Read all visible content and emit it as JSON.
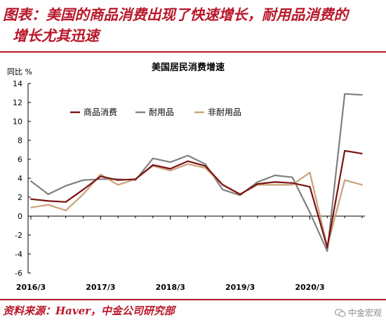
{
  "figure": {
    "title_line1": "图表：美国的商品消费出现了快速增长，耐用品消费的",
    "title_line2": "增长尤其迅速",
    "source": "资料来源：Haver，中金公司研究部",
    "watermark": "中金宏观"
  },
  "colors": {
    "accent": "#b8172a",
    "goods": "#7a1212",
    "durable": "#808080",
    "nondurable": "#c9a27a"
  },
  "chart_data": {
    "type": "line",
    "title": "美国居民消费增速",
    "ylabel": "同比 %",
    "ylim": [
      -6,
      14
    ],
    "yticks": [
      -6,
      -4,
      -2,
      0,
      2,
      4,
      6,
      8,
      10,
      12,
      14
    ],
    "xtick_labels": [
      "2016/3",
      "2017/3",
      "2018/3",
      "2019/3",
      "2020/3"
    ],
    "x": [
      "2016/3",
      "2016/6",
      "2016/9",
      "2016/12",
      "2017/3",
      "2017/6",
      "2017/9",
      "2017/12",
      "2018/3",
      "2018/6",
      "2018/9",
      "2018/12",
      "2019/3",
      "2019/6",
      "2019/9",
      "2019/12",
      "2020/3",
      "2020/6",
      "2020/9",
      "2020/12"
    ],
    "legend_position": "upper-left",
    "grid": false,
    "series": [
      {
        "name": "商品消费",
        "color_key": "goods",
        "values": [
          1.8,
          1.6,
          1.5,
          2.8,
          4.2,
          3.8,
          3.9,
          5.4,
          5.0,
          5.8,
          5.3,
          3.3,
          2.3,
          3.4,
          3.6,
          3.5,
          3.1,
          -3.3,
          6.9,
          6.6
        ]
      },
      {
        "name": "耐用品",
        "color_key": "durable",
        "values": [
          3.7,
          2.3,
          3.2,
          3.8,
          3.9,
          3.9,
          3.8,
          6.1,
          5.7,
          6.4,
          5.5,
          2.8,
          2.2,
          3.6,
          4.3,
          4.1,
          0.4,
          -3.7,
          12.9,
          12.8
        ]
      },
      {
        "name": "非耐用品",
        "color_key": "nondurable",
        "values": [
          0.9,
          1.2,
          0.6,
          2.3,
          4.4,
          3.3,
          3.9,
          5.3,
          4.8,
          5.5,
          5.1,
          3.3,
          2.3,
          3.3,
          3.3,
          3.3,
          4.6,
          -3.2,
          3.8,
          3.3
        ]
      }
    ]
  }
}
